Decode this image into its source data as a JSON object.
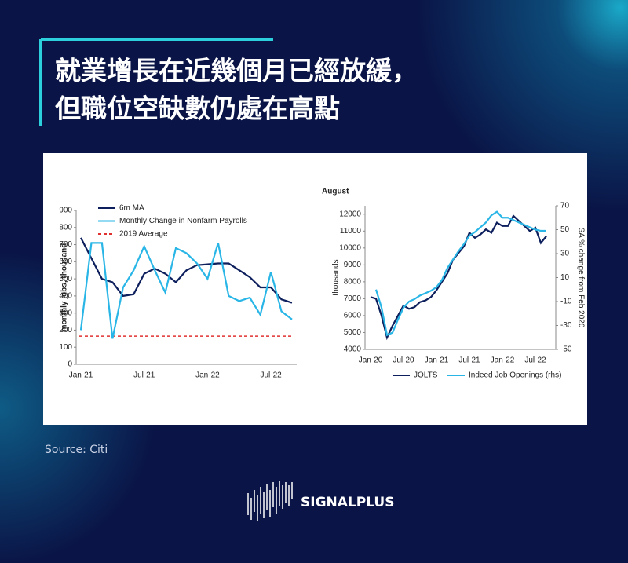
{
  "header": {
    "title_lines": [
      "就業增長在近幾個月已經放緩，",
      "但職位空缺數仍處在高點"
    ]
  },
  "chart_data": [
    {
      "type": "line",
      "y_label": "monthly jobs, thousand",
      "categories": [
        "Jan-21",
        null,
        null,
        null,
        null,
        null,
        "Jul-21",
        null,
        null,
        null,
        null,
        null,
        "Jan-22",
        null,
        null,
        null,
        null,
        null,
        "Jul-22",
        null,
        null
      ],
      "ylim": [
        0,
        900
      ],
      "yticks": [
        0,
        100,
        200,
        300,
        400,
        500,
        600,
        700,
        800,
        900
      ],
      "grid": false,
      "legend": "upper left",
      "series": [
        {
          "name": "6m MA",
          "color": "#0d1f5c",
          "values": [
            740,
            620,
            500,
            480,
            400,
            410,
            530,
            560,
            530,
            480,
            550,
            580,
            585,
            590,
            590,
            550,
            510,
            450,
            450,
            380,
            360
          ]
        },
        {
          "name": "Monthly Change in Nonfarm Payrolls",
          "color": "#29b6e6",
          "values": [
            200,
            710,
            710,
            150,
            450,
            550,
            690,
            550,
            420,
            680,
            650,
            590,
            500,
            710,
            400,
            370,
            390,
            290,
            540,
            310,
            263
          ]
        }
      ],
      "reference_lines": [
        {
          "name": "2019 Average",
          "value": 165,
          "color": "#e03030"
        }
      ]
    },
    {
      "type": "line",
      "subtitle": "August",
      "y_label": "thousands",
      "y2_label": "SA % change from Feb 2020",
      "categories": [
        "Jan-20",
        null,
        null,
        null,
        null,
        null,
        "Jul-20",
        null,
        null,
        null,
        null,
        null,
        "Jan-21",
        null,
        null,
        null,
        null,
        null,
        "Jul-21",
        null,
        null,
        null,
        null,
        null,
        "Jan-22",
        null,
        null,
        null,
        null,
        null,
        "Jul-22",
        null,
        null
      ],
      "ylim": [
        4000,
        12500
      ],
      "yticks": [
        4000,
        5000,
        6000,
        7000,
        8000,
        9000,
        10000,
        11000,
        12000
      ],
      "y2lim": [
        -50,
        70
      ],
      "y2ticks": [
        -50,
        -30,
        -10,
        10,
        30,
        50,
        70
      ],
      "grid": false,
      "legend": "bottom",
      "series": [
        {
          "name": "JOLTS",
          "color": "#0d1f5c",
          "values": [
            7100,
            7000,
            6000,
            4700,
            5400,
            6000,
            6600,
            6400,
            6500,
            6800,
            6900,
            7100,
            7500,
            8000,
            8500,
            9300,
            9700,
            10100,
            10900,
            10600,
            10800,
            11100,
            10900,
            11500,
            11300,
            11300,
            11900,
            11600,
            11300,
            11000,
            11200,
            10300,
            10700
          ]
        },
        {
          "name": "Indeed Job Openings (rhs)",
          "color": "#29b6e6",
          "axis": "y2",
          "values": [
            null,
            0,
            -15,
            -38,
            -36,
            -25,
            -15,
            -10,
            -8,
            -5,
            -3,
            -1,
            2,
            8,
            18,
            25,
            32,
            38,
            45,
            48,
            52,
            56,
            62,
            65,
            60,
            60,
            58,
            56,
            54,
            52,
            50,
            49,
            49
          ]
        }
      ]
    }
  ],
  "source": "Source:  Citi",
  "brand": "SIGNALPLUS"
}
